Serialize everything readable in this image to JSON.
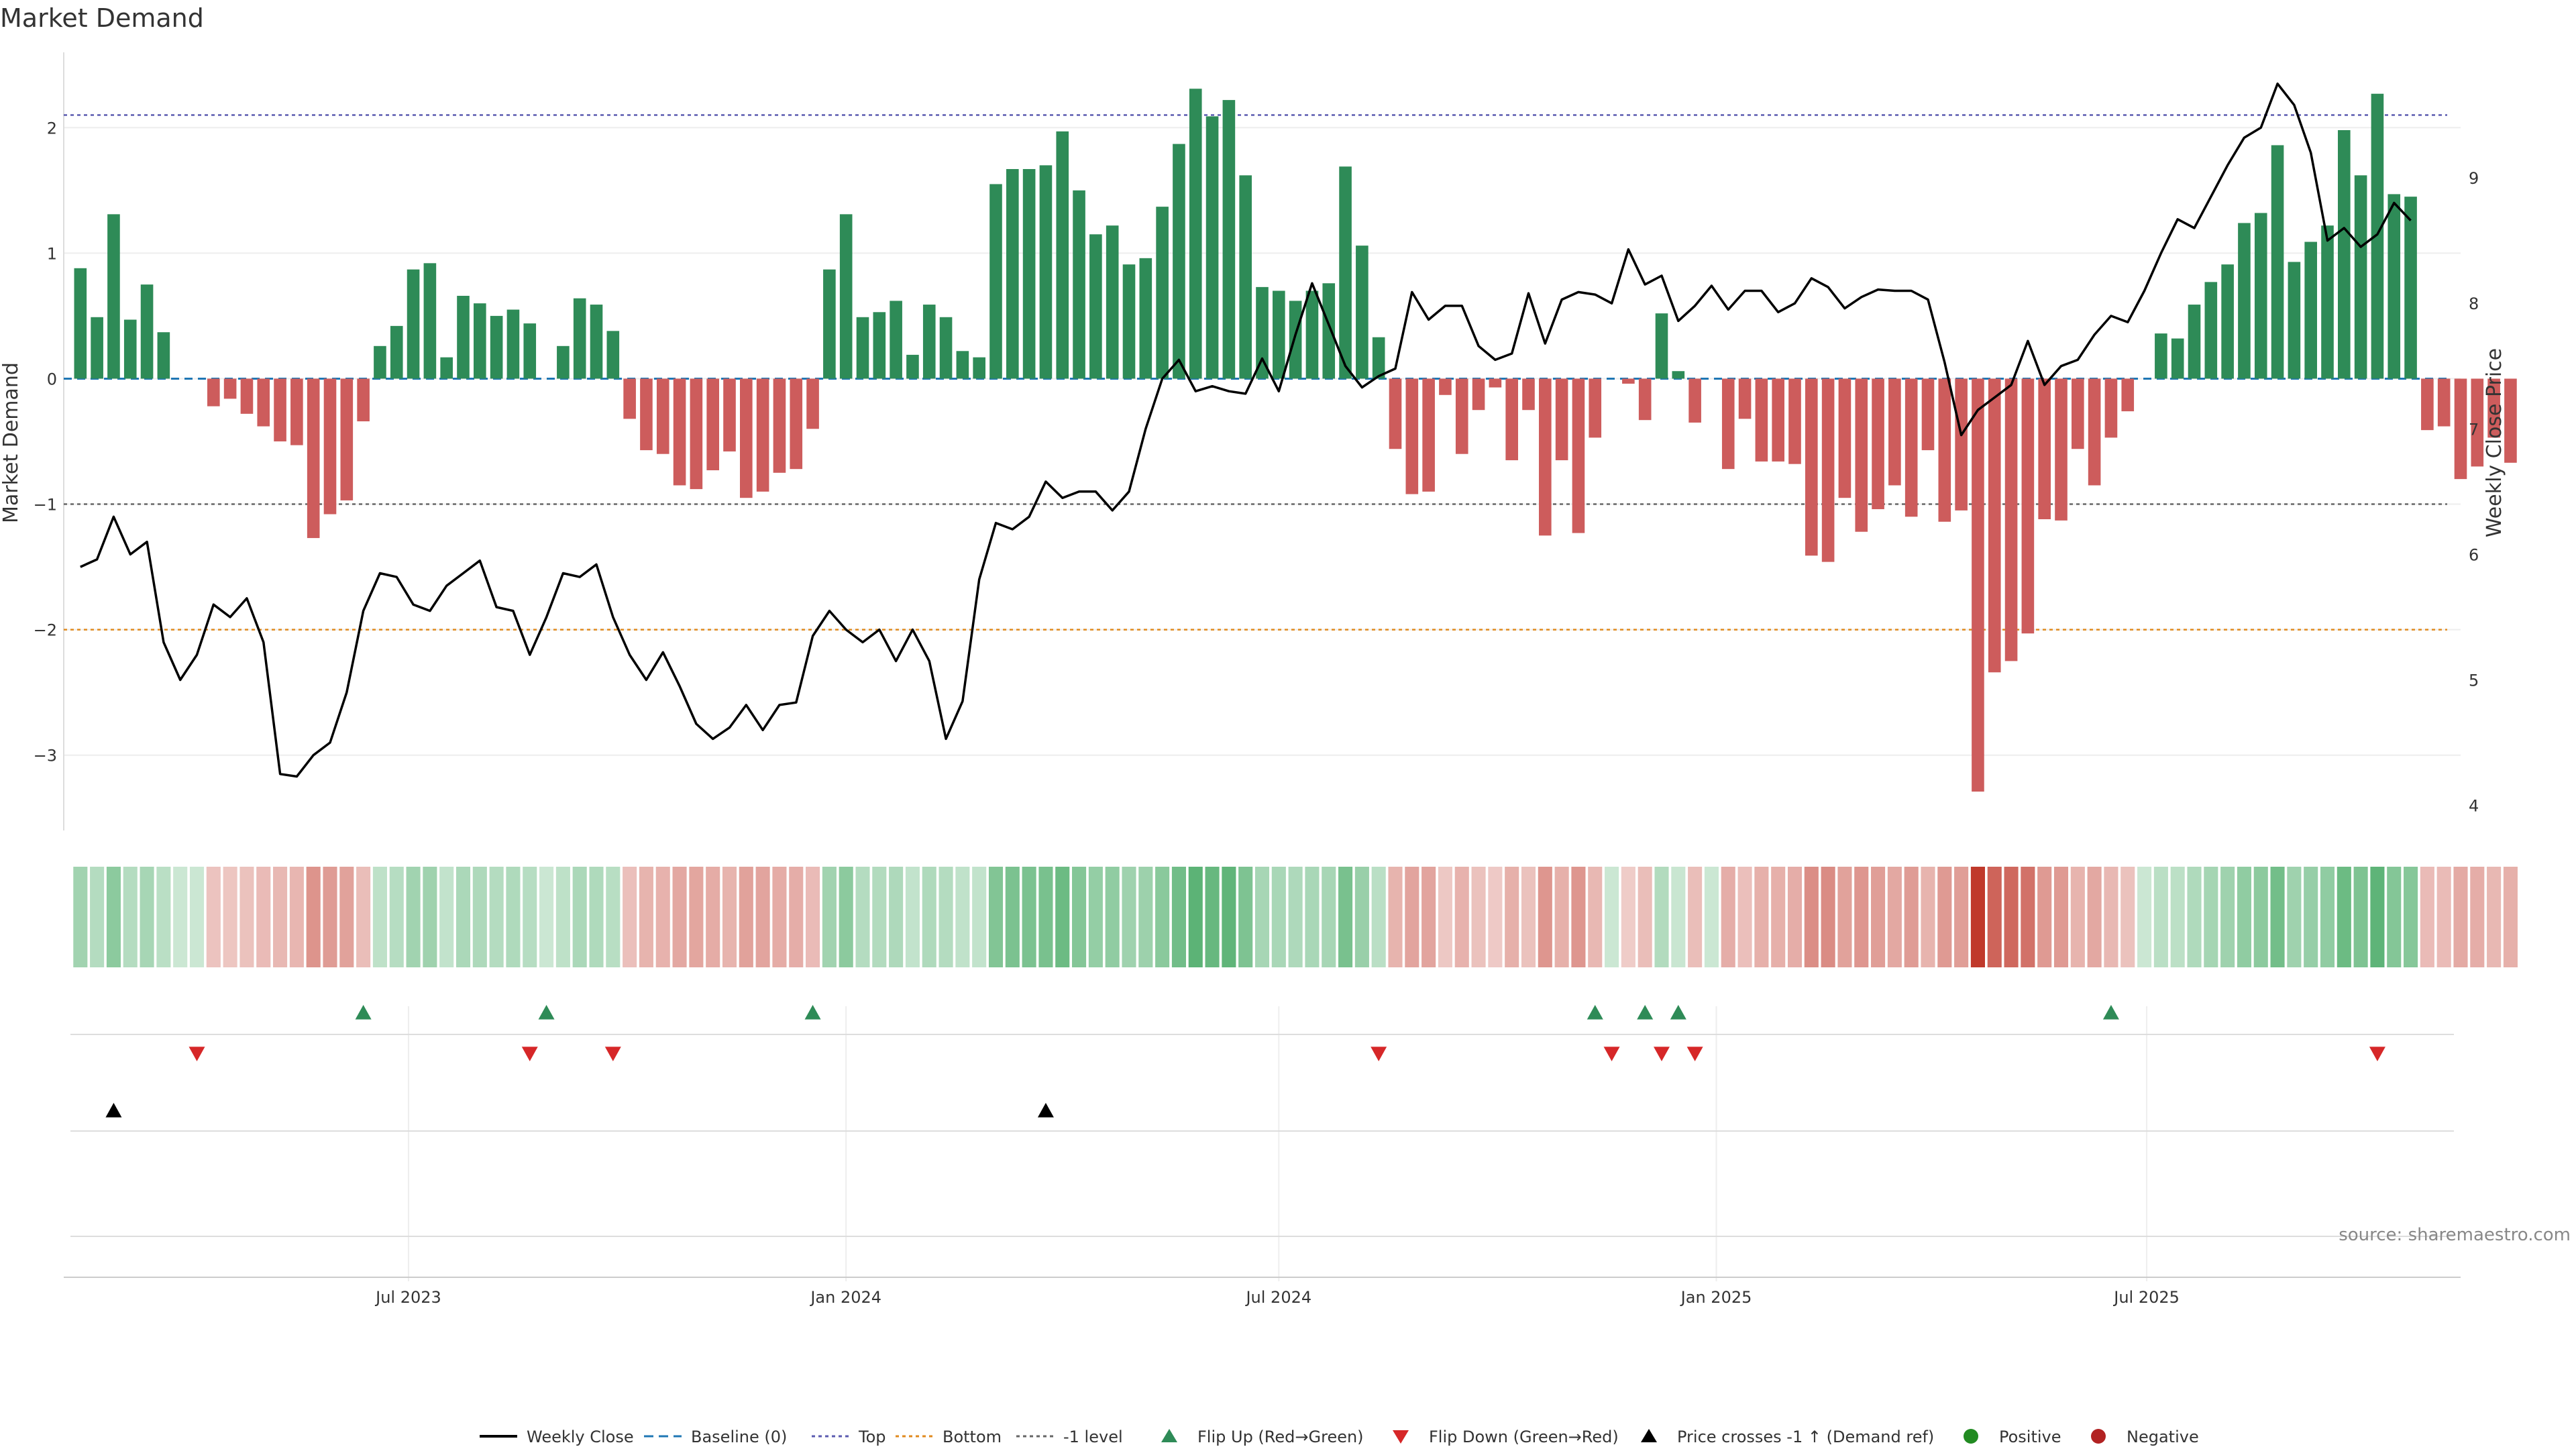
{
  "chart_data": {
    "type": "bar",
    "title": "Market Demand",
    "ylabel": "Market Demand",
    "y2label": "Weekly Close Price",
    "ylim": [
      -3.6,
      2.6
    ],
    "y2lim": [
      3.8,
      10.0
    ],
    "yticks": [
      2,
      1,
      0,
      -1,
      -2,
      -3
    ],
    "ytick_labels": [
      "2",
      "1",
      "0",
      "−1",
      "−2",
      "−3"
    ],
    "y2ticks": [
      9,
      8,
      7,
      6,
      5,
      4
    ],
    "y2tick_labels": [
      "9",
      "8",
      "7",
      "6",
      "5",
      "4"
    ],
    "x_start": "2023-02-13",
    "x_step_weeks": 1,
    "xlim": [
      "2023-02-06",
      "2025-11-10"
    ],
    "xticks": [
      {
        "date": "2023-07-01",
        "label": "Jul 2023"
      },
      {
        "date": "2024-01-01",
        "label": "Jan 2024"
      },
      {
        "date": "2024-07-01",
        "label": "Jul 2024"
      },
      {
        "date": "2025-01-01",
        "label": "Jan 2025"
      },
      {
        "date": "2025-07-01",
        "label": "Jul 2025"
      }
    ],
    "reference_lines": {
      "top": 2.1,
      "bottom": -2.0,
      "minus_one": -1.0,
      "baseline": 0
    },
    "series": [
      {
        "name": "Market Demand",
        "values": [
          0.88,
          0.49,
          1.31,
          0.47,
          0.75,
          0.37,
          0,
          0,
          -0.22,
          -0.16,
          -0.28,
          -0.38,
          -0.5,
          -0.53,
          -1.27,
          -1.08,
          -0.97,
          -0.34,
          0.26,
          0.42,
          0.87,
          0.92,
          0.17,
          0.66,
          0.6,
          0.5,
          0.55,
          0.44,
          0,
          0.26,
          0.64,
          0.59,
          0.38,
          -0.32,
          -0.57,
          -0.6,
          -0.85,
          -0.88,
          -0.73,
          -0.58,
          -0.95,
          -0.9,
          -0.75,
          -0.72,
          -0.4,
          0.87,
          1.31,
          0.49,
          0.53,
          0.62,
          0.19,
          0.59,
          0.49,
          0.22,
          0.17,
          1.55,
          1.67,
          1.67,
          1.7,
          1.97,
          1.5,
          1.15,
          1.22,
          0.91,
          0.96,
          1.37,
          1.87,
          2.31,
          2.09,
          2.22,
          1.62,
          0.73,
          0.7,
          0.62,
          0.7,
          0.76,
          1.69,
          1.06,
          0.33,
          -0.56,
          -0.92,
          -0.9,
          -0.13,
          -0.6,
          -0.25,
          -0.07,
          -0.65,
          -0.25,
          -1.25,
          -0.65,
          -1.23,
          -0.47,
          0,
          -0.04,
          -0.33,
          0.52,
          0.06,
          -0.35,
          0,
          -0.72,
          -0.32,
          -0.66,
          -0.66,
          -0.68,
          -1.41,
          -1.46,
          -0.95,
          -1.22,
          -1.04,
          -0.85,
          -1.1,
          -0.57,
          -1.14,
          -1.05,
          -3.29,
          -2.34,
          -2.25,
          -2.03,
          -1.12,
          -1.13,
          -0.56,
          -0.85,
          -0.47,
          -0.26,
          0,
          0.36,
          0.32,
          0.59,
          0.77,
          0.91,
          1.24,
          1.32,
          1.86,
          0.93,
          1.09,
          1.22,
          1.98,
          1.62,
          2.27,
          1.47,
          1.45,
          -0.41,
          -0.38,
          -0.8,
          -0.7,
          -0.47,
          -0.67
        ]
      },
      {
        "name": "Weekly Close",
        "values": [
          5.9,
          5.96,
          6.3,
          6.0,
          6.1,
          5.3,
          5.0,
          5.2,
          5.6,
          5.5,
          5.65,
          5.3,
          4.25,
          4.23,
          4.4,
          4.5,
          4.9,
          5.55,
          5.85,
          5.82,
          5.6,
          5.55,
          5.75,
          5.85,
          5.95,
          5.58,
          5.55,
          5.2,
          5.5,
          5.85,
          5.82,
          5.92,
          5.5,
          5.2,
          5.0,
          5.22,
          4.95,
          4.65,
          4.53,
          4.62,
          4.8,
          4.6,
          4.8,
          4.82,
          5.35,
          5.55,
          5.4,
          5.3,
          5.4,
          5.15,
          5.4,
          5.15,
          4.53,
          4.83,
          5.8,
          6.25,
          6.2,
          6.3,
          6.58,
          6.45,
          6.5,
          6.5,
          6.35,
          6.5,
          7.0,
          7.4,
          7.55,
          7.3,
          7.34,
          7.3,
          7.28,
          7.56,
          7.3,
          7.75,
          8.16,
          7.83,
          7.5,
          7.33,
          7.42,
          7.48,
          8.09,
          7.87,
          7.98,
          7.98,
          7.66,
          7.55,
          7.6,
          8.08,
          7.68,
          8.03,
          8.09,
          8.07,
          8.0,
          8.43,
          8.15,
          8.22,
          7.86,
          7.98,
          8.14,
          7.95,
          8.1,
          8.1,
          7.93,
          8.0,
          8.2,
          8.13,
          7.96,
          8.05,
          8.11,
          8.1,
          8.1,
          8.03,
          7.53,
          6.95,
          7.15,
          7.25,
          7.35,
          7.7,
          7.35,
          7.5,
          7.55,
          7.75,
          7.9,
          7.85,
          8.1,
          8.4,
          8.67,
          8.6,
          8.85,
          9.1,
          9.32,
          9.4,
          9.75,
          9.58,
          9.2,
          8.5,
          8.6,
          8.45,
          8.55,
          8.8,
          8.66
        ]
      }
    ],
    "heatmap_row": "Market Demand",
    "events": {
      "flip_up_weeks": [
        17,
        28,
        44,
        91,
        94,
        96,
        122
      ],
      "flip_down_weeks": [
        7,
        27,
        32,
        78,
        92,
        95,
        97,
        138
      ],
      "price_cross_weeks": [
        2,
        58
      ]
    },
    "legend": {
      "placement": "bottom-center",
      "items": [
        {
          "label": "Weekly Close",
          "kind": "line",
          "color": "#000000"
        },
        {
          "label": "Baseline (0)",
          "kind": "dash",
          "color": "#1f77b4"
        },
        {
          "label": "Top",
          "kind": "dot",
          "color": "#5b5bb0"
        },
        {
          "label": "Bottom",
          "kind": "dot",
          "color": "#e08a1e"
        },
        {
          "label": "-1 level",
          "kind": "dot",
          "color": "#666666"
        },
        {
          "label": "Flip Up (Red→Green)",
          "kind": "tri-up",
          "color": "#2e8b57"
        },
        {
          "label": "Flip Down (Green→Red)",
          "kind": "tri-down",
          "color": "#d62728"
        },
        {
          "label": "Price crosses -1 ↑ (Demand ref)",
          "kind": "tri-up",
          "color": "#000000"
        },
        {
          "label": "Positive",
          "kind": "circle",
          "color": "#228b22"
        },
        {
          "label": "Negative",
          "kind": "circle",
          "color": "#b22222"
        }
      ]
    },
    "colors": {
      "positive": "#2e8b57",
      "negative": "#cd5c5c",
      "heat_positive": "#2e9e4f",
      "heat_negative": "#c0392b",
      "flip_up": "#2e8b57",
      "flip_down": "#d62728",
      "price": "#000000"
    },
    "grid": true,
    "source": "source: sharemaestro.com"
  }
}
